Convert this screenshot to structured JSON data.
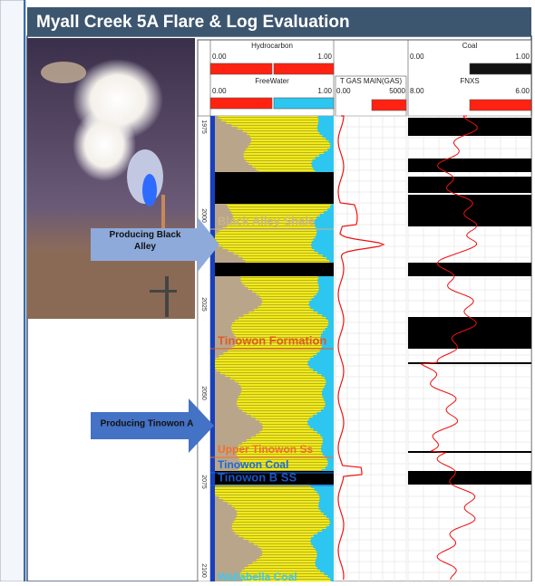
{
  "header": {
    "title": "Myall Creek 5A Flare & Log Evaluation"
  },
  "tracks": {
    "hydrocarbon": {
      "name": "Hydrocarbon",
      "min": "0.00",
      "max": "1.00"
    },
    "freewater": {
      "name": "FreeWater",
      "min": "0.00",
      "max": "1.00"
    },
    "gas": {
      "name": "T GAS MAIN(GAS)",
      "min": "0.00",
      "max": "5000"
    },
    "coal": {
      "name": "Coal",
      "min": "0.00",
      "max": "1.00"
    },
    "fnxs": {
      "name": "FNXS",
      "min": "8.00",
      "max": "6.00"
    }
  },
  "depths": [
    "1975",
    "2000",
    "2025",
    "2050",
    "2075",
    "2100"
  ],
  "formations": [
    "Black Alley Shale",
    "Tinowon Formation",
    "Upper Tinowon Ss",
    "Tinowon Coal",
    "Tinowon B SS",
    "Wallabella Coal"
  ],
  "callouts": [
    "Producing Black Alley",
    "Producing Tinowon A"
  ]
}
